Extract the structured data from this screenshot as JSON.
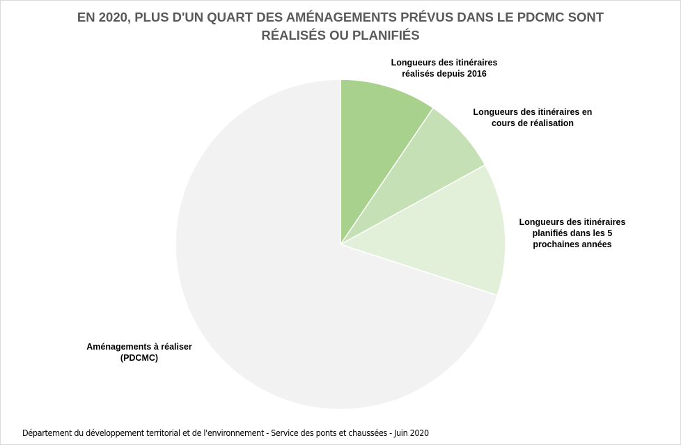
{
  "chart_data": {
    "type": "pie",
    "title": [
      "EN 2020, PLUS D'UN QUART DES AMÉNAGEMENTS  PRÉVUS DANS LE PDCMC SONT",
      "RÉALISÉS OU PLANIFIÉS"
    ],
    "slices": [
      {
        "label": [
          "Longueurs des itinéraires",
          "réalisés depuis 2016"
        ],
        "value": 9.5,
        "color": "#a9d18e"
      },
      {
        "label": [
          "Longueurs des itinéraires en",
          "cours de réalisation"
        ],
        "value": 7.5,
        "color": "#c5e0b4"
      },
      {
        "label": [
          "Longueurs des itinéraires",
          "planifiés dans les 5",
          "prochaines années"
        ],
        "value": 13.0,
        "color": "#e2f0d9"
      },
      {
        "label": [
          "Aménagements à réaliser",
          "(PDCMC)"
        ],
        "value": 70.0,
        "color": "#f2f2f2"
      }
    ],
    "start_angle_deg": 0,
    "direction": "clockwise",
    "legend": "none",
    "data_labels": "category name outside"
  },
  "footer": "Département du développement territorial et de l'environnement - Service des ponts et chaussées - Juin 2020"
}
